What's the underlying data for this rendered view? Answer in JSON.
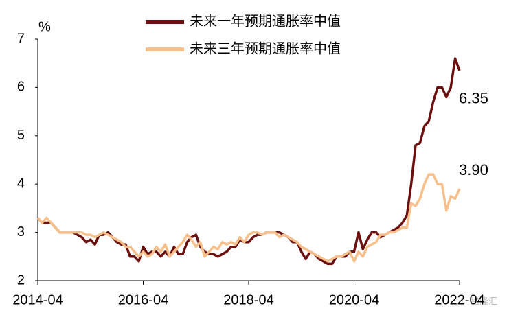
{
  "chart_data": {
    "type": "line",
    "y_label": "%",
    "watermark": "格隆汇",
    "categories": [
      "2014-04",
      null,
      null,
      null,
      null,
      null,
      null,
      null,
      null,
      null,
      null,
      null,
      null,
      null,
      null,
      null,
      null,
      null,
      null,
      null,
      null,
      null,
      null,
      null,
      "2016-04",
      null,
      null,
      null,
      null,
      null,
      null,
      null,
      null,
      null,
      null,
      null,
      null,
      null,
      null,
      null,
      null,
      null,
      null,
      null,
      null,
      null,
      null,
      null,
      "2018-04",
      null,
      null,
      null,
      null,
      null,
      null,
      null,
      null,
      null,
      null,
      null,
      null,
      null,
      null,
      null,
      null,
      null,
      null,
      null,
      null,
      null,
      null,
      null,
      "2020-04",
      null,
      null,
      null,
      null,
      null,
      null,
      null,
      null,
      null,
      null,
      null,
      null,
      null,
      null,
      null,
      null,
      null,
      null,
      null,
      null,
      null,
      null,
      null,
      "2022-04"
    ],
    "series": [
      {
        "name": "未来一年预期通胀率中值",
        "color": "#6b0f0f",
        "values": [
          3.3,
          3.2,
          3.2,
          3.2,
          3.1,
          3.0,
          3.0,
          3.0,
          3.0,
          2.95,
          2.9,
          2.8,
          2.85,
          2.75,
          2.95,
          2.95,
          3.0,
          2.9,
          2.8,
          2.75,
          2.75,
          2.5,
          2.5,
          2.4,
          2.7,
          2.55,
          2.6,
          2.6,
          2.5,
          2.6,
          2.5,
          2.7,
          2.55,
          2.55,
          2.8,
          2.9,
          2.95,
          2.7,
          2.6,
          2.55,
          2.55,
          2.5,
          2.55,
          2.6,
          2.7,
          2.7,
          2.85,
          2.8,
          2.8,
          2.9,
          2.95,
          2.95,
          3.0,
          3.0,
          3.0,
          3.0,
          2.95,
          2.9,
          2.8,
          2.8,
          2.6,
          2.45,
          2.6,
          2.55,
          2.45,
          2.4,
          2.35,
          2.35,
          2.5,
          2.5,
          2.5,
          2.6,
          2.6,
          3.0,
          2.65,
          2.85,
          3.0,
          3.0,
          2.9,
          2.95,
          3.0,
          3.05,
          3.1,
          3.2,
          3.35,
          4.0,
          4.8,
          4.85,
          5.2,
          5.3,
          5.7,
          6.0,
          6.0,
          5.8,
          6.0,
          6.6,
          6.35
        ]
      },
      {
        "name": "未来三年预期通胀率中值",
        "color": "#f7bf8a",
        "values": [
          3.3,
          3.2,
          3.3,
          3.2,
          3.1,
          3.0,
          3.0,
          3.0,
          3.0,
          3.0,
          3.0,
          2.95,
          2.95,
          2.9,
          2.95,
          3.0,
          2.95,
          2.9,
          2.85,
          2.8,
          2.7,
          2.7,
          2.6,
          2.5,
          2.6,
          2.5,
          2.55,
          2.7,
          2.6,
          2.75,
          2.5,
          2.6,
          2.7,
          2.8,
          2.95,
          2.85,
          2.7,
          2.8,
          2.5,
          2.6,
          2.7,
          2.65,
          2.8,
          2.75,
          2.8,
          2.75,
          2.9,
          2.8,
          2.95,
          3.0,
          3.0,
          2.95,
          3.0,
          3.0,
          3.0,
          2.9,
          2.95,
          2.9,
          2.85,
          2.8,
          2.7,
          2.65,
          2.6,
          2.55,
          2.5,
          2.45,
          2.4,
          2.45,
          2.5,
          2.5,
          2.55,
          2.6,
          2.4,
          2.6,
          2.5,
          2.7,
          2.75,
          2.8,
          2.95,
          2.95,
          3.0,
          3.0,
          3.05,
          3.1,
          3.1,
          3.6,
          3.55,
          3.7,
          4.0,
          4.2,
          4.2,
          4.0,
          4.0,
          3.45,
          3.75,
          3.7,
          3.9
        ],
        "value_labels": [
          null,
          null,
          null,
          null,
          null,
          null,
          null,
          null,
          null,
          null,
          null,
          null,
          null,
          null,
          null,
          null,
          null,
          null,
          null,
          null,
          null,
          null,
          null,
          null,
          null,
          null,
          null,
          null,
          null,
          null,
          null,
          null,
          null,
          null,
          null,
          null,
          null,
          null,
          null,
          null,
          null,
          null,
          null,
          null,
          null,
          null,
          null,
          null,
          null,
          null,
          null,
          null,
          null,
          null,
          null,
          null,
          null,
          null,
          null,
          null,
          null,
          null,
          null,
          null,
          null,
          null,
          null,
          null,
          null,
          null,
          null,
          null,
          null,
          null,
          null,
          null,
          null,
          null,
          null,
          null,
          null,
          null,
          null,
          null,
          null,
          null,
          null,
          null,
          null,
          null,
          null,
          null,
          null,
          null,
          null,
          null,
          "3.90"
        ]
      }
    ],
    "ylim": [
      2,
      7
    ],
    "yticks": [
      2,
      3,
      4,
      5,
      6,
      7
    ],
    "grid": false
  }
}
